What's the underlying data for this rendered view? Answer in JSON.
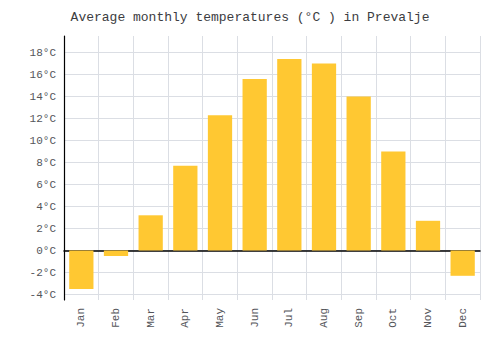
{
  "chart_data": {
    "type": "bar",
    "title": "Average monthly temperatures (°C ) in Prevalje",
    "categories": [
      "Jan",
      "Feb",
      "Mar",
      "Apr",
      "May",
      "Jun",
      "Jul",
      "Aug",
      "Sep",
      "Oct",
      "Nov",
      "Dec"
    ],
    "values": [
      -3.5,
      -0.5,
      3.2,
      7.7,
      12.3,
      15.6,
      17.4,
      17.0,
      14.0,
      9.0,
      2.7,
      -2.3
    ],
    "color": "#FFC832",
    "ylim": [
      -4.5,
      19.5
    ],
    "yticks": [
      {
        "value": -4,
        "label": "-4°C"
      },
      {
        "value": -2,
        "label": "-2°C"
      },
      {
        "value": 0,
        "label": "0°C"
      },
      {
        "value": 2,
        "label": "2°C"
      },
      {
        "value": 4,
        "label": "4°C"
      },
      {
        "value": 6,
        "label": "6°C"
      },
      {
        "value": 8,
        "label": "8°C"
      },
      {
        "value": 10,
        "label": "10°C"
      },
      {
        "value": 12,
        "label": "12°C"
      },
      {
        "value": 14,
        "label": "14°C"
      },
      {
        "value": 16,
        "label": "16°C"
      },
      {
        "value": 18,
        "label": "18°C"
      }
    ],
    "grid": true
  }
}
